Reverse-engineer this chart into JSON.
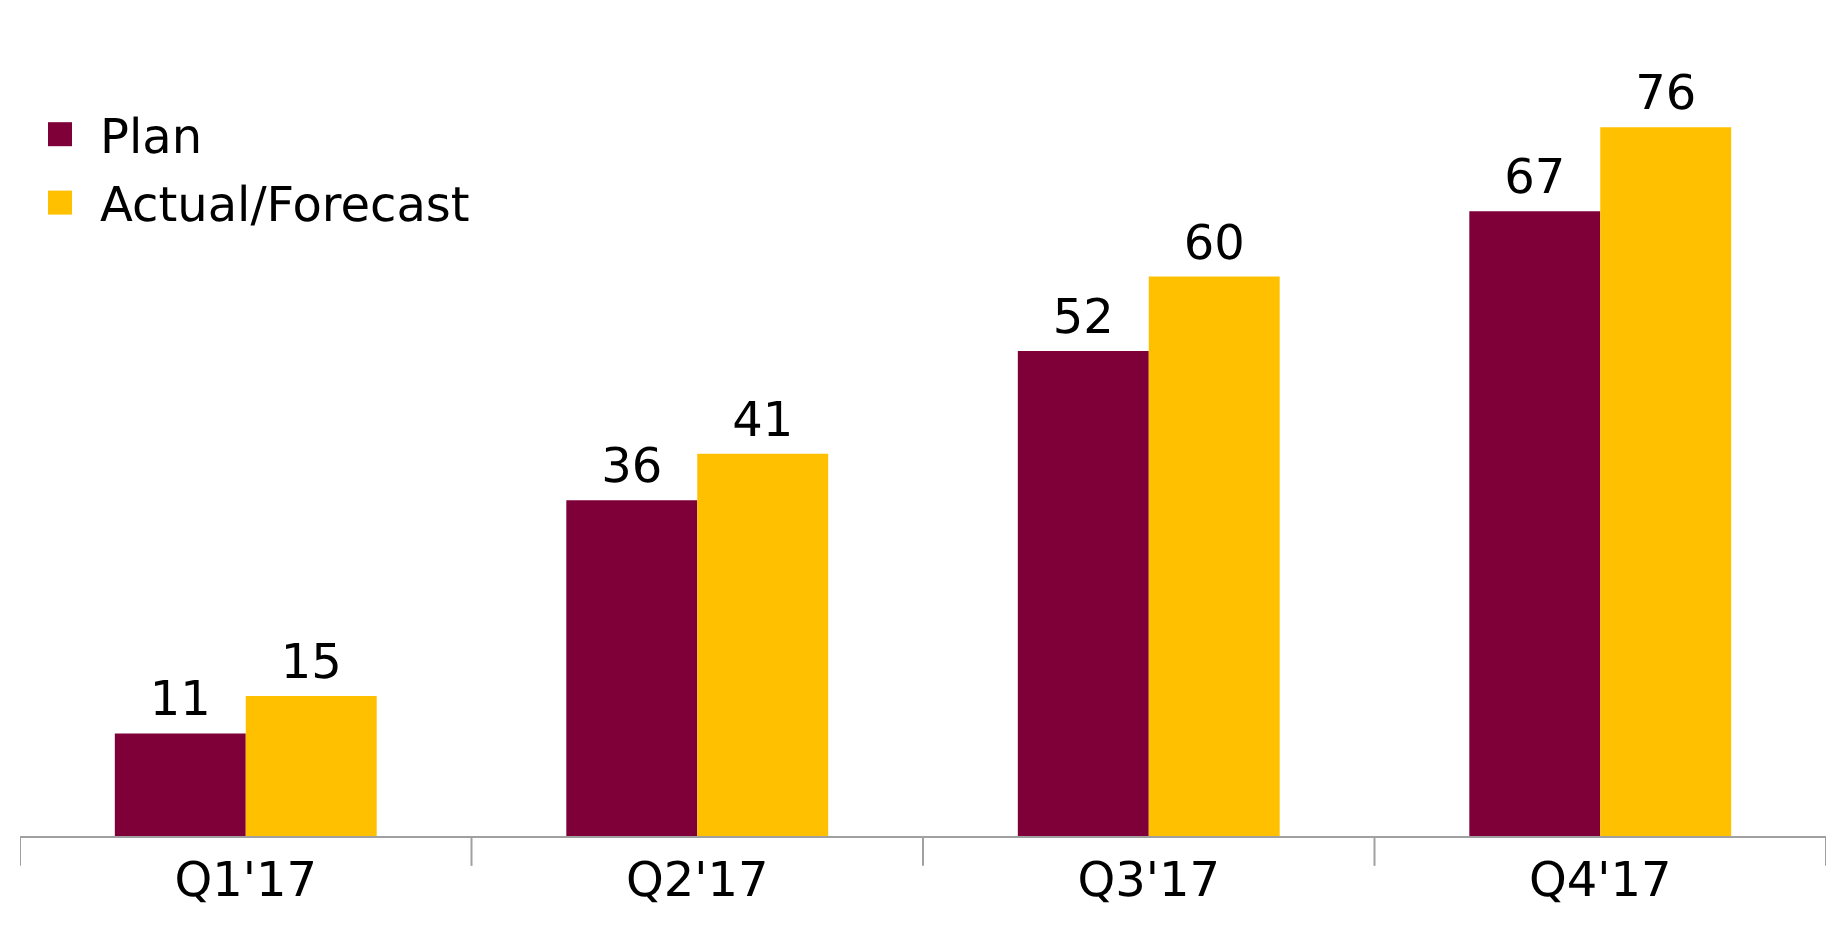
{
  "chart_data": {
    "type": "bar",
    "categories": [
      "Q1'17",
      "Q2'17",
      "Q3'17",
      "Q4'17"
    ],
    "series": [
      {
        "name": "Plan",
        "color": "#7f0038",
        "values": [
          11,
          36,
          52,
          67
        ]
      },
      {
        "name": "Actual/Forecast",
        "color": "#ffc000",
        "values": [
          15,
          41,
          60,
          76
        ]
      }
    ],
    "data_labels": true,
    "legend": "top left"
  }
}
